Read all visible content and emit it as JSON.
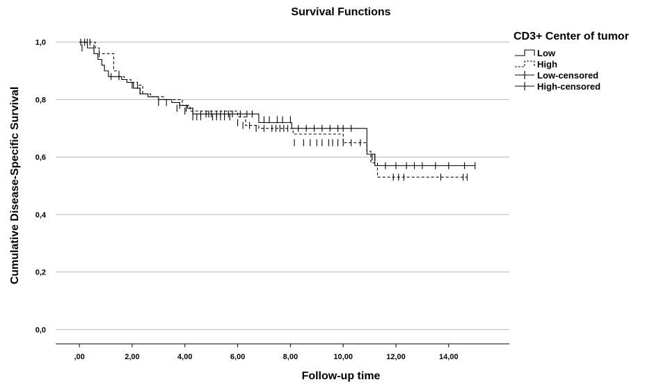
{
  "chart_data": {
    "type": "line",
    "title": "Survival Functions",
    "xlabel": "Follow-up time",
    "ylabel": "Cumulative Disease-Specific Survival",
    "xlim": [
      -0.9,
      16.3
    ],
    "ylim": [
      -0.05,
      1.05
    ],
    "x_ticks": [
      0,
      2,
      4,
      6,
      8,
      10,
      12,
      14
    ],
    "x_tick_labels": [
      ",00",
      "2,00",
      "4,00",
      "6,00",
      "8,00",
      "10,00",
      "12,00",
      "14,00"
    ],
    "y_ticks": [
      0,
      0.2,
      0.4,
      0.6,
      0.8,
      1.0
    ],
    "y_tick_labels": [
      "0,0",
      "0,2",
      "0,4",
      "0,6",
      "0,8",
      "1,0"
    ],
    "grid": "horizontal",
    "legend": {
      "title": "CD3+ Center of tumor",
      "placement": "right",
      "entries": [
        "Low",
        "High",
        "Low-censored",
        "High-censored"
      ]
    },
    "series": [
      {
        "name": "Low",
        "style": "solid",
        "steps": [
          [
            0,
            1.0
          ],
          [
            0.3,
            0.98
          ],
          [
            0.55,
            0.96
          ],
          [
            0.7,
            0.94
          ],
          [
            0.85,
            0.92
          ],
          [
            0.95,
            0.9
          ],
          [
            1.1,
            0.88
          ],
          [
            1.6,
            0.87
          ],
          [
            1.8,
            0.86
          ],
          [
            2.05,
            0.84
          ],
          [
            2.3,
            0.82
          ],
          [
            2.6,
            0.81
          ],
          [
            3.0,
            0.8
          ],
          [
            3.5,
            0.79
          ],
          [
            3.8,
            0.78
          ],
          [
            4.1,
            0.77
          ],
          [
            4.3,
            0.75
          ],
          [
            6.8,
            0.72
          ],
          [
            8.05,
            0.7
          ],
          [
            10.9,
            0.61
          ],
          [
            11.2,
            0.57
          ],
          [
            15.0,
            0.57
          ]
        ],
        "censored": [
          [
            0.05,
            1.0
          ],
          [
            0.2,
            1.0
          ],
          [
            0.3,
            1.0
          ],
          [
            0.4,
            1.0
          ],
          [
            0.55,
            0.98
          ],
          [
            1.2,
            0.88
          ],
          [
            2.0,
            0.85
          ],
          [
            2.3,
            0.83
          ],
          [
            3.3,
            0.79
          ],
          [
            3.8,
            0.78
          ],
          [
            4.05,
            0.77
          ],
          [
            4.3,
            0.76
          ],
          [
            4.6,
            0.75
          ],
          [
            4.8,
            0.75
          ],
          [
            5.0,
            0.75
          ],
          [
            5.2,
            0.75
          ],
          [
            5.35,
            0.75
          ],
          [
            5.5,
            0.75
          ],
          [
            5.65,
            0.75
          ],
          [
            5.8,
            0.75
          ],
          [
            6.1,
            0.75
          ],
          [
            6.35,
            0.75
          ],
          [
            6.55,
            0.75
          ],
          [
            7.0,
            0.73
          ],
          [
            7.2,
            0.73
          ],
          [
            7.5,
            0.73
          ],
          [
            7.7,
            0.73
          ],
          [
            8.0,
            0.73
          ],
          [
            8.3,
            0.7
          ],
          [
            8.6,
            0.7
          ],
          [
            8.9,
            0.7
          ],
          [
            9.2,
            0.7
          ],
          [
            9.5,
            0.7
          ],
          [
            9.8,
            0.7
          ],
          [
            10.0,
            0.7
          ],
          [
            10.3,
            0.7
          ],
          [
            11.2,
            0.6
          ],
          [
            11.6,
            0.57
          ],
          [
            12.0,
            0.57
          ],
          [
            12.4,
            0.57
          ],
          [
            12.7,
            0.57
          ],
          [
            13.0,
            0.57
          ],
          [
            13.5,
            0.57
          ],
          [
            14.0,
            0.57
          ],
          [
            14.6,
            0.57
          ],
          [
            15.0,
            0.57
          ]
        ],
        "censored_shown_at": "step value"
      },
      {
        "name": "High",
        "style": "dashed",
        "steps": [
          [
            0,
            1.0
          ],
          [
            0.4,
            1.0
          ],
          [
            0.6,
            0.98
          ],
          [
            0.75,
            0.96
          ],
          [
            1.3,
            0.9
          ],
          [
            1.5,
            0.88
          ],
          [
            1.7,
            0.87
          ],
          [
            1.95,
            0.86
          ],
          [
            2.2,
            0.85
          ],
          [
            2.4,
            0.82
          ],
          [
            2.7,
            0.81
          ],
          [
            3.2,
            0.8
          ],
          [
            3.9,
            0.78
          ],
          [
            4.2,
            0.76
          ],
          [
            6.0,
            0.74
          ],
          [
            6.3,
            0.71
          ],
          [
            6.8,
            0.7
          ],
          [
            7.4,
            0.7
          ],
          [
            8.1,
            0.68
          ],
          [
            10.0,
            0.65
          ],
          [
            10.9,
            0.62
          ],
          [
            11.05,
            0.58
          ],
          [
            11.3,
            0.53
          ],
          [
            14.7,
            0.53
          ]
        ],
        "censored": [
          [
            0.1,
            0.98
          ],
          [
            0.75,
            0.96
          ],
          [
            1.5,
            0.88
          ],
          [
            2.2,
            0.85
          ],
          [
            3.0,
            0.79
          ],
          [
            3.7,
            0.77
          ],
          [
            4.0,
            0.76
          ],
          [
            4.3,
            0.74
          ],
          [
            4.45,
            0.74
          ],
          [
            4.6,
            0.74
          ],
          [
            4.9,
            0.75
          ],
          [
            5.05,
            0.74
          ],
          [
            5.2,
            0.74
          ],
          [
            5.35,
            0.74
          ],
          [
            5.5,
            0.74
          ],
          [
            5.7,
            0.74
          ],
          [
            6.0,
            0.72
          ],
          [
            6.2,
            0.71
          ],
          [
            6.45,
            0.71
          ],
          [
            6.7,
            0.7
          ],
          [
            7.0,
            0.7
          ],
          [
            7.3,
            0.7
          ],
          [
            7.45,
            0.7
          ],
          [
            7.6,
            0.7
          ],
          [
            7.75,
            0.7
          ],
          [
            7.9,
            0.7
          ],
          [
            8.15,
            0.65
          ],
          [
            8.5,
            0.65
          ],
          [
            8.75,
            0.65
          ],
          [
            9.0,
            0.65
          ],
          [
            9.2,
            0.65
          ],
          [
            9.45,
            0.65
          ],
          [
            9.6,
            0.65
          ],
          [
            9.8,
            0.65
          ],
          [
            10.0,
            0.65
          ],
          [
            10.3,
            0.65
          ],
          [
            10.65,
            0.65
          ],
          [
            11.1,
            0.6
          ],
          [
            11.9,
            0.53
          ],
          [
            12.1,
            0.53
          ],
          [
            12.3,
            0.53
          ],
          [
            13.7,
            0.53
          ],
          [
            14.55,
            0.53
          ],
          [
            14.7,
            0.53
          ]
        ],
        "censored_shown_at": "step value"
      }
    ]
  }
}
